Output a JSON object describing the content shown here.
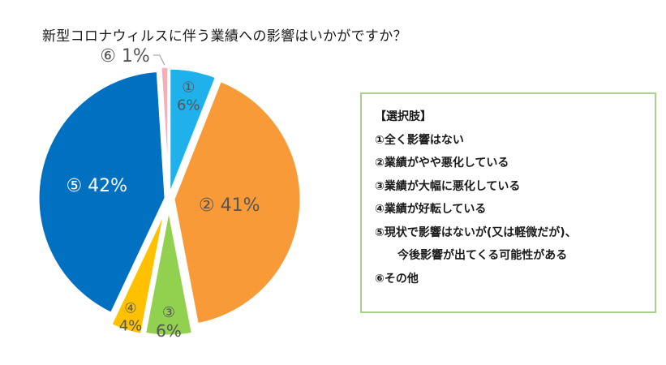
{
  "chart_data": {
    "type": "pie",
    "title": "新型コロナウィルスに伴う業績への影響はいかがですか？",
    "slices": [
      {
        "marker": "①",
        "value": 6,
        "label": "6%",
        "color": "#1fb1ec"
      },
      {
        "marker": "②",
        "value": 41,
        "label": "41%",
        "color": "#f99a38"
      },
      {
        "marker": "③",
        "value": 6,
        "label": "6%",
        "color": "#92d050"
      },
      {
        "marker": "④",
        "value": 4,
        "label": "4%",
        "color": "#ffc000"
      },
      {
        "marker": "⑤",
        "value": 42,
        "label": "42%",
        "color": "#0070c0"
      },
      {
        "marker": "⑥",
        "value": 1,
        "label": "1%",
        "color": "#f4b0b8"
      }
    ],
    "legend": {
      "title": "【選択肢】",
      "items": [
        "①全く影響はない",
        "②業績がやや悪化している",
        "③業績が大幅に悪化している",
        "④業績が好転している",
        "⑤現状で影響はないが(又は軽微だが)、",
        "今後影響が出てくる可能性がある",
        "⑥その他"
      ]
    }
  }
}
